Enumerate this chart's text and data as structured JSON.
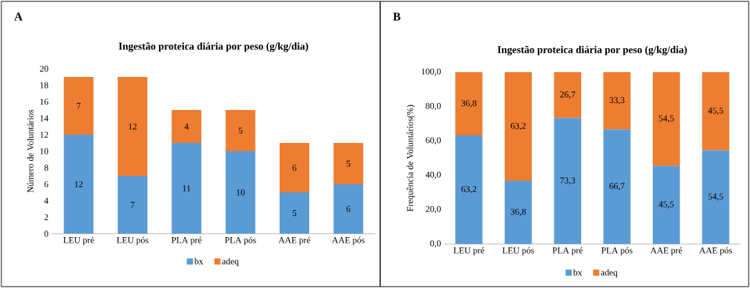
{
  "chart_data": [
    {
      "type": "bar",
      "stacked": true,
      "title": "Ingestão proteica diária por peso (g/kg/dia)",
      "ylabel": "Número de Voluntários",
      "categories": [
        "LEU pré",
        "LEU pós",
        "PLA pré",
        "PLA pós",
        "AAE pré",
        "AAE pós"
      ],
      "series": [
        {
          "name": "bx",
          "color": "#5b9bd5",
          "values": [
            12,
            7,
            11,
            10,
            5,
            6
          ]
        },
        {
          "name": "adeq",
          "color": "#ed7d31",
          "values": [
            7,
            12,
            4,
            5,
            6,
            5
          ]
        }
      ],
      "ylim": [
        0,
        20
      ],
      "yticks": [
        0,
        2,
        4,
        6,
        8,
        10,
        12,
        14,
        16,
        18,
        20
      ],
      "data_labels": true,
      "legend": "bottom",
      "annotations": [
        "A"
      ]
    },
    {
      "type": "bar",
      "stacked": true,
      "title": "Ingestão proteica diária por peso (g/kg/dia)",
      "ylabel": "Frequência de Voluntários(%)",
      "categories": [
        "LEU pré",
        "LEU pós",
        "PLA pré",
        "PLA pós",
        "AAE pré",
        "AAE pós"
      ],
      "series": [
        {
          "name": "bx",
          "color": "#5b9bd5",
          "values": [
            63.2,
            36.8,
            73.3,
            66.7,
            45.5,
            54.5
          ],
          "value_labels": [
            "63,2",
            "36,8",
            "73,3",
            "66,7",
            "45,5",
            "54,5"
          ]
        },
        {
          "name": "adeq",
          "color": "#ed7d31",
          "values": [
            36.8,
            63.2,
            26.7,
            33.3,
            54.5,
            45.5
          ],
          "value_labels": [
            "36,8",
            "63,2",
            "26,7",
            "33,3",
            "54,5",
            "45,5"
          ]
        }
      ],
      "ylim": [
        0,
        100
      ],
      "yticks": [
        {
          "value": 0,
          "label": "0,0"
        },
        {
          "value": 20,
          "label": "20,0"
        },
        {
          "value": 40,
          "label": "40,0"
        },
        {
          "value": 60,
          "label": "60,0"
        },
        {
          "value": 80,
          "label": "80,0"
        },
        {
          "value": 100,
          "label": "100,0"
        }
      ],
      "legend": "bottom",
      "annotations": [
        "B"
      ]
    }
  ]
}
